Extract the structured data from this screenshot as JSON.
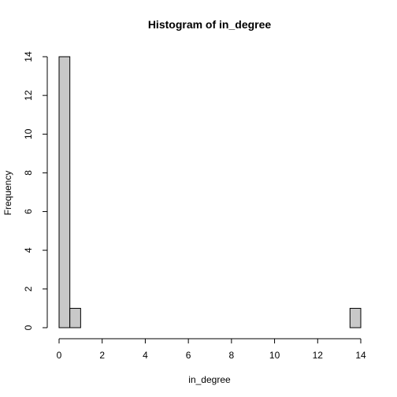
{
  "chart_data": {
    "type": "bar",
    "title": "Histogram of in_degree",
    "xlabel": "in_degree",
    "ylabel": "Frequency",
    "bin_width": 0.5,
    "bin_starts": [
      0,
      0.5,
      1,
      1.5,
      2,
      2.5,
      3,
      3.5,
      4,
      4.5,
      5,
      5.5,
      6,
      6.5,
      7,
      7.5,
      8,
      8.5,
      9,
      9.5,
      10,
      10.5,
      11,
      11.5,
      12,
      12.5,
      13,
      13.5
    ],
    "values": [
      14,
      1,
      0,
      0,
      0,
      0,
      0,
      0,
      0,
      0,
      0,
      0,
      0,
      0,
      0,
      0,
      0,
      0,
      0,
      0,
      0,
      0,
      0,
      0,
      0,
      0,
      0,
      1
    ],
    "xlim": [
      0,
      14
    ],
    "ylim": [
      0,
      14
    ],
    "x_ticks": [
      0,
      2,
      4,
      6,
      8,
      10,
      12,
      14
    ],
    "y_ticks": [
      0,
      2,
      4,
      6,
      8,
      10,
      12,
      14
    ],
    "grid": false,
    "bar_color": "#c8c8c8",
    "edge_color": "#000000"
  }
}
